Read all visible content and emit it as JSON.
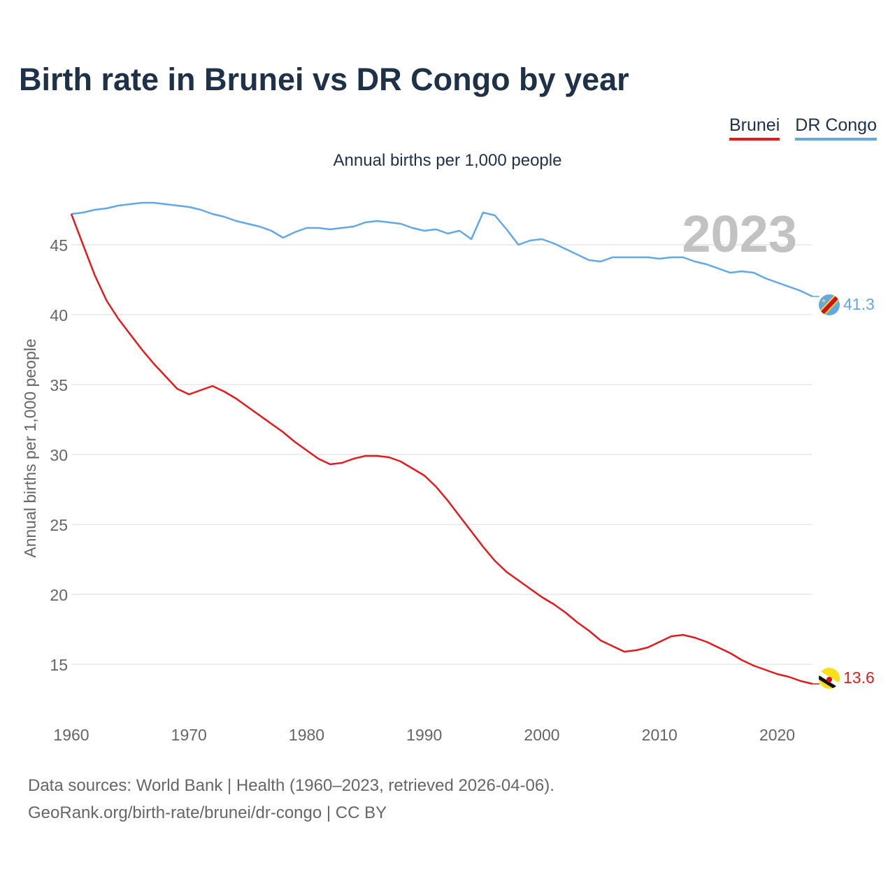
{
  "chart_data": {
    "type": "line",
    "title": "Birth rate in Brunei vs DR Congo by year",
    "subtitle": "Annual births per 1,000 people",
    "ylabel": "Annual births per 1,000 people",
    "xlabel": "",
    "xlim": [
      1960,
      2023
    ],
    "ylim": [
      11,
      48
    ],
    "x_ticks": [
      1960,
      1970,
      1980,
      1990,
      2000,
      2010,
      2020
    ],
    "y_ticks": [
      15,
      20,
      25,
      30,
      35,
      40,
      45
    ],
    "grid": true,
    "legend_position": "top-right",
    "year_label": "2023",
    "x": [
      1960,
      1961,
      1962,
      1963,
      1964,
      1965,
      1966,
      1967,
      1968,
      1969,
      1970,
      1971,
      1972,
      1973,
      1974,
      1975,
      1976,
      1977,
      1978,
      1979,
      1980,
      1981,
      1982,
      1983,
      1984,
      1985,
      1986,
      1987,
      1988,
      1989,
      1990,
      1991,
      1992,
      1993,
      1994,
      1995,
      1996,
      1997,
      1998,
      1999,
      2000,
      2001,
      2002,
      2003,
      2004,
      2005,
      2006,
      2007,
      2008,
      2009,
      2010,
      2011,
      2012,
      2013,
      2014,
      2015,
      2016,
      2017,
      2018,
      2019,
      2020,
      2021,
      2022,
      2023
    ],
    "series": [
      {
        "name": "Brunei",
        "color": "#e41a1c",
        "end_label": "13.6",
        "flag": "brunei-flag-icon",
        "values": [
          47.2,
          45.0,
          42.8,
          41.0,
          39.7,
          38.6,
          37.5,
          36.5,
          35.6,
          34.7,
          34.3,
          34.6,
          34.9,
          34.5,
          34.0,
          33.4,
          32.8,
          32.2,
          31.6,
          30.9,
          30.3,
          29.7,
          29.3,
          29.4,
          29.7,
          29.9,
          29.9,
          29.8,
          29.5,
          29.0,
          28.5,
          27.7,
          26.7,
          25.6,
          24.5,
          23.4,
          22.4,
          21.6,
          21.0,
          20.4,
          19.8,
          19.3,
          18.7,
          18.0,
          17.4,
          16.7,
          16.3,
          15.9,
          16.0,
          16.2,
          16.6,
          17.0,
          17.1,
          16.9,
          16.6,
          16.2,
          15.8,
          15.3,
          14.9,
          14.6,
          14.3,
          14.1,
          13.8,
          13.6
        ]
      },
      {
        "name": "DR Congo",
        "color": "#62a8e5",
        "end_label": "41.3",
        "flag": "dr-congo-flag-icon",
        "values": [
          47.2,
          47.3,
          47.5,
          47.6,
          47.8,
          47.9,
          48.0,
          48.0,
          47.9,
          47.8,
          47.7,
          47.5,
          47.2,
          47.0,
          46.7,
          46.5,
          46.3,
          46.0,
          45.5,
          45.9,
          46.2,
          46.2,
          46.1,
          46.2,
          46.3,
          46.6,
          46.7,
          46.6,
          46.5,
          46.2,
          46.0,
          46.1,
          45.8,
          46.0,
          45.4,
          47.3,
          47.1,
          46.1,
          45.0,
          45.3,
          45.4,
          45.1,
          44.7,
          44.3,
          43.9,
          43.8,
          44.1,
          44.1,
          44.1,
          44.1,
          44.0,
          44.1,
          44.1,
          43.8,
          43.6,
          43.3,
          43.0,
          43.1,
          43.0,
          42.6,
          42.3,
          42.0,
          41.7,
          41.3
        ]
      }
    ],
    "footer_lines": [
      "Data sources: World Bank | Health (1960–2023, retrieved 2026-04-06).",
      "GeoRank.org/birth-rate/brunei/dr-congo | CC BY"
    ]
  }
}
